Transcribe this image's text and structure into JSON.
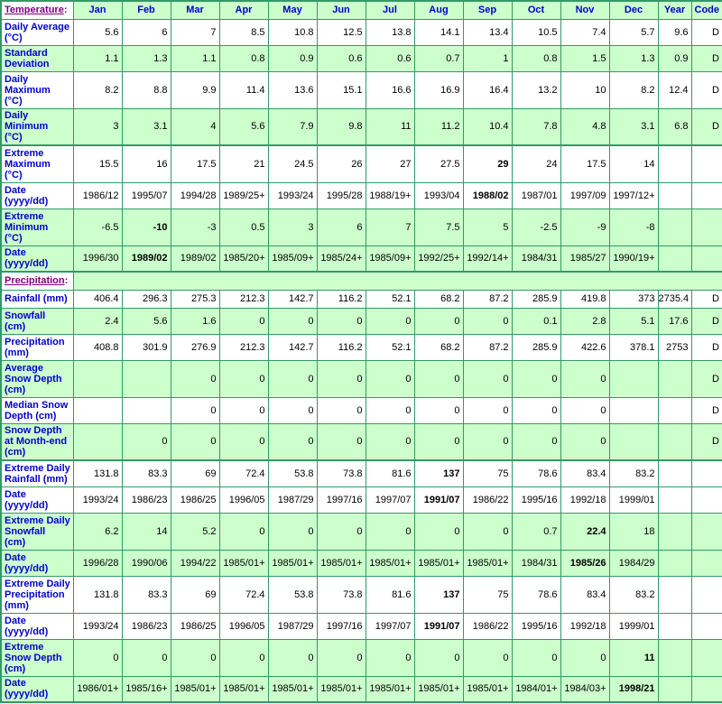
{
  "colors": {
    "border_green": "#339966",
    "cell_green": "#CCFFCC",
    "cell_white": "#FFFFFF",
    "label_blue": "#0000CC",
    "section_link_purple": "#800080",
    "value_text": "#000000"
  },
  "header": {
    "section_label": "Temperature",
    "section_colon": ":",
    "columns": [
      "Jan",
      "Feb",
      "Mar",
      "Apr",
      "May",
      "Jun",
      "Jul",
      "Aug",
      "Sep",
      "Oct",
      "Nov",
      "Dec",
      "Year",
      "Code"
    ]
  },
  "rows": [
    {
      "type": "data",
      "name": "daily-average",
      "label": "Daily Average\n(°C)",
      "bg": "white",
      "section_start": false,
      "values": [
        "5.6",
        "6",
        "7",
        "8.5",
        "10.8",
        "12.5",
        "13.8",
        "14.1",
        "13.4",
        "10.5",
        "7.4",
        "5.7",
        "9.6",
        "D"
      ],
      "bold": []
    },
    {
      "type": "data",
      "name": "standard-deviation",
      "label": "Standard\nDeviation",
      "bg": "green",
      "section_start": false,
      "values": [
        "1.1",
        "1.3",
        "1.1",
        "0.8",
        "0.9",
        "0.6",
        "0.6",
        "0.7",
        "1",
        "0.8",
        "1.5",
        "1.3",
        "0.9",
        "D"
      ],
      "bold": []
    },
    {
      "type": "data",
      "name": "daily-maximum",
      "label": "Daily\nMaximum\n(°C)",
      "bg": "white",
      "section_start": false,
      "values": [
        "8.2",
        "8.8",
        "9.9",
        "11.4",
        "13.6",
        "15.1",
        "16.6",
        "16.9",
        "16.4",
        "13.2",
        "10",
        "8.2",
        "12.4",
        "D"
      ],
      "bold": []
    },
    {
      "type": "data",
      "name": "daily-minimum",
      "label": "Daily\nMinimum\n(°C)",
      "bg": "green",
      "section_start": false,
      "values": [
        "3",
        "3.1",
        "4",
        "5.6",
        "7.9",
        "9.8",
        "11",
        "11.2",
        "10.4",
        "7.8",
        "4.8",
        "3.1",
        "6.8",
        "D"
      ],
      "bold": []
    },
    {
      "type": "data",
      "name": "extreme-maximum",
      "label": "Extreme\nMaximum\n(°C)",
      "bg": "white",
      "section_start": true,
      "values": [
        "15.5",
        "16",
        "17.5",
        "21",
        "24.5",
        "26",
        "27",
        "27.5",
        "29",
        "24",
        "17.5",
        "14",
        "",
        ""
      ],
      "bold": [
        8
      ]
    },
    {
      "type": "data",
      "name": "extreme-maximum-date",
      "label": "Date\n(yyyy/dd)",
      "bg": "white",
      "section_start": false,
      "values": [
        "1986/12",
        "1995/07",
        "1994/28",
        "1989/25+",
        "1993/24",
        "1995/28",
        "1988/19+",
        "1993/04",
        "1988/02",
        "1987/01",
        "1997/09",
        "1997/12+",
        "",
        ""
      ],
      "bold": [
        8
      ]
    },
    {
      "type": "data",
      "name": "extreme-minimum",
      "label": "Extreme\nMinimum\n(°C)",
      "bg": "green",
      "section_start": false,
      "values": [
        "-6.5",
        "-10",
        "-3",
        "0.5",
        "3",
        "6",
        "7",
        "7.5",
        "5",
        "-2.5",
        "-9",
        "-8",
        "",
        ""
      ],
      "bold": [
        1
      ]
    },
    {
      "type": "data",
      "name": "extreme-minimum-date",
      "label": "Date\n(yyyy/dd)",
      "bg": "green",
      "section_start": false,
      "values": [
        "1996/30",
        "1989/02",
        "1989/02",
        "1985/20+",
        "1985/09+",
        "1985/24+",
        "1985/09+",
        "1992/25+",
        "1992/14+",
        "1984/31",
        "1985/27",
        "1990/19+",
        "",
        ""
      ],
      "bold": [
        1
      ]
    },
    {
      "type": "section",
      "name": "precipitation-section",
      "label": "Precipitation",
      "colon": ":",
      "bg": "green",
      "section_start": true
    },
    {
      "type": "data",
      "name": "rainfall",
      "label": "Rainfall (mm)",
      "bg": "white",
      "section_start": false,
      "values": [
        "406.4",
        "296.3",
        "275.3",
        "212.3",
        "142.7",
        "116.2",
        "52.1",
        "68.2",
        "87.2",
        "285.9",
        "419.8",
        "373",
        "2735.4",
        "D"
      ],
      "bold": []
    },
    {
      "type": "data",
      "name": "snowfall",
      "label": "Snowfall\n(cm)",
      "bg": "green",
      "section_start": false,
      "values": [
        "2.4",
        "5.6",
        "1.6",
        "0",
        "0",
        "0",
        "0",
        "0",
        "0",
        "0.1",
        "2.8",
        "5.1",
        "17.6",
        "D"
      ],
      "bold": []
    },
    {
      "type": "data",
      "name": "precipitation",
      "label": "Precipitation\n(mm)",
      "bg": "white",
      "section_start": false,
      "values": [
        "408.8",
        "301.9",
        "276.9",
        "212.3",
        "142.7",
        "116.2",
        "52.1",
        "68.2",
        "87.2",
        "285.9",
        "422.6",
        "378.1",
        "2753",
        "D"
      ],
      "bold": []
    },
    {
      "type": "data",
      "name": "average-snow-depth",
      "label": "Average\nSnow Depth\n(cm)",
      "bg": "green",
      "section_start": false,
      "values": [
        "",
        "",
        "0",
        "0",
        "0",
        "0",
        "0",
        "0",
        "0",
        "0",
        "0",
        "",
        "",
        "D"
      ],
      "bold": []
    },
    {
      "type": "data",
      "name": "median-snow-depth",
      "label": "Median Snow\nDepth (cm)",
      "bg": "white",
      "section_start": false,
      "values": [
        "",
        "",
        "0",
        "0",
        "0",
        "0",
        "0",
        "0",
        "0",
        "0",
        "0",
        "",
        "",
        "D"
      ],
      "bold": []
    },
    {
      "type": "data",
      "name": "snow-depth-month-end",
      "label": "Snow Depth\nat Month-end\n(cm)",
      "bg": "green",
      "section_start": false,
      "values": [
        "",
        "0",
        "0",
        "0",
        "0",
        "0",
        "0",
        "0",
        "0",
        "0",
        "0",
        "",
        "",
        "D"
      ],
      "bold": []
    },
    {
      "type": "data",
      "name": "extreme-daily-rainfall",
      "label": "Extreme Daily\nRainfall (mm)",
      "bg": "white",
      "section_start": true,
      "values": [
        "131.8",
        "83.3",
        "69",
        "72.4",
        "53.8",
        "73.8",
        "81.6",
        "137",
        "75",
        "78.6",
        "83.4",
        "83.2",
        "",
        ""
      ],
      "bold": [
        7
      ]
    },
    {
      "type": "data",
      "name": "extreme-daily-rainfall-date",
      "label": "Date\n(yyyy/dd)",
      "bg": "white",
      "section_start": false,
      "values": [
        "1993/24",
        "1986/23",
        "1986/25",
        "1996/05",
        "1987/29",
        "1997/16",
        "1997/07",
        "1991/07",
        "1986/22",
        "1995/16",
        "1992/18",
        "1999/01",
        "",
        ""
      ],
      "bold": [
        7
      ]
    },
    {
      "type": "data",
      "name": "extreme-daily-snowfall",
      "label": "Extreme Daily\nSnowfall\n(cm)",
      "bg": "green",
      "section_start": false,
      "values": [
        "6.2",
        "14",
        "5.2",
        "0",
        "0",
        "0",
        "0",
        "0",
        "0",
        "0.7",
        "22.4",
        "18",
        "",
        ""
      ],
      "bold": [
        10
      ]
    },
    {
      "type": "data",
      "name": "extreme-daily-snowfall-date",
      "label": "Date\n(yyyy/dd)",
      "bg": "green",
      "section_start": false,
      "values": [
        "1996/28",
        "1990/06",
        "1994/22",
        "1985/01+",
        "1985/01+",
        "1985/01+",
        "1985/01+",
        "1985/01+",
        "1985/01+",
        "1984/31",
        "1985/26",
        "1984/29",
        "",
        ""
      ],
      "bold": [
        10
      ]
    },
    {
      "type": "data",
      "name": "extreme-daily-precipitation",
      "label": "Extreme Daily\nPrecipitation\n(mm)",
      "bg": "white",
      "section_start": false,
      "values": [
        "131.8",
        "83.3",
        "69",
        "72.4",
        "53.8",
        "73.8",
        "81.6",
        "137",
        "75",
        "78.6",
        "83.4",
        "83.2",
        "",
        ""
      ],
      "bold": [
        7
      ]
    },
    {
      "type": "data",
      "name": "extreme-daily-precipitation-date",
      "label": "Date\n(yyyy/dd)",
      "bg": "white",
      "section_start": false,
      "values": [
        "1993/24",
        "1986/23",
        "1986/25",
        "1996/05",
        "1987/29",
        "1997/16",
        "1997/07",
        "1991/07",
        "1986/22",
        "1995/16",
        "1992/18",
        "1999/01",
        "",
        ""
      ],
      "bold": [
        7
      ]
    },
    {
      "type": "data",
      "name": "extreme-snow-depth",
      "label": "Extreme\nSnow Depth\n(cm)",
      "bg": "green",
      "section_start": false,
      "values": [
        "0",
        "0",
        "0",
        "0",
        "0",
        "0",
        "0",
        "0",
        "0",
        "0",
        "0",
        "11",
        "",
        ""
      ],
      "bold": [
        11
      ]
    },
    {
      "type": "data",
      "name": "extreme-snow-depth-date",
      "label": "Date\n(yyyy/dd)",
      "bg": "green",
      "section_start": false,
      "values": [
        "1986/01+",
        "1985/16+",
        "1985/01+",
        "1985/01+",
        "1985/01+",
        "1985/01+",
        "1985/01+",
        "1985/01+",
        "1985/01+",
        "1984/01+",
        "1984/03+",
        "1998/21",
        "",
        ""
      ],
      "bold": [
        11
      ]
    }
  ]
}
